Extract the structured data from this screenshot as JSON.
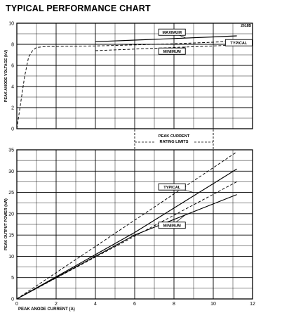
{
  "title": "TYPICAL PERFORMANCE CHART",
  "figure_code": "2618B",
  "colors": {
    "ink": "#000000",
    "paper": "#ffffff"
  },
  "chart_data": [
    {
      "type": "line",
      "title": "",
      "xlabel": "",
      "ylabel": "PEAK ANODE VOLTAGE (kV)",
      "xlim": [
        0,
        12
      ],
      "ylim": [
        0,
        10
      ],
      "x_ticks": [],
      "y_ticks": [
        0,
        2,
        4,
        6,
        8,
        10
      ],
      "grid": true,
      "series": [
        {
          "name": "MAXIMUM",
          "style": "solid",
          "x": [
            4,
            6,
            8,
            10,
            11.2
          ],
          "y": [
            8.25,
            8.4,
            8.55,
            8.7,
            8.8
          ]
        },
        {
          "name": "TYPICAL",
          "style": "dashed",
          "x": [
            0,
            0.2,
            0.4,
            0.6,
            0.8,
            1.0,
            1.5,
            2,
            4,
            6,
            8,
            10,
            11.2
          ],
          "y": [
            0,
            2.5,
            5.0,
            6.8,
            7.4,
            7.7,
            7.8,
            7.8,
            7.85,
            7.95,
            8.05,
            8.2,
            8.3
          ]
        },
        {
          "name": "MINIMUM",
          "style": "dashed",
          "x": [
            4,
            6,
            8,
            10,
            11.2
          ],
          "y": [
            7.4,
            7.55,
            7.7,
            7.85,
            7.95
          ]
        }
      ],
      "annotations": [
        {
          "text": "MAXIMUM",
          "x": 7.9,
          "y": 9.15,
          "boxed": true,
          "pointer_to": [
            8.6,
            8.6
          ]
        },
        {
          "text": "TYPICAL",
          "x": 11.3,
          "y": 8.15,
          "boxed": true,
          "pointer_to": [
            10.6,
            8.25
          ]
        },
        {
          "text": "MINIMUM",
          "x": 7.9,
          "y": 7.35,
          "boxed": true,
          "pointer_to": [
            8.6,
            7.75
          ]
        },
        {
          "text": [
            "PEAK CURRENT",
            "RATING LIMITS"
          ],
          "span": [
            6,
            10
          ]
        }
      ]
    },
    {
      "type": "line",
      "title": "",
      "xlabel": "PEAK ANODE CURRENT (A)",
      "ylabel": "PEAK OUTPUT POWER (kW)",
      "xlim": [
        0,
        12
      ],
      "ylim": [
        0,
        35
      ],
      "x_ticks": [
        0,
        2,
        4,
        6,
        8,
        10,
        12
      ],
      "y_ticks": [
        0,
        5,
        10,
        15,
        20,
        25,
        30,
        35
      ],
      "grid": true,
      "series": [
        {
          "name": "TYPICAL",
          "style": "solid",
          "x": [
            0,
            6,
            11.2
          ],
          "y": [
            0,
            15.6,
            30.5
          ]
        },
        {
          "name": "TYPICAL",
          "style": "dashed",
          "x": [
            0,
            11.2
          ],
          "y": [
            0,
            34.5
          ]
        },
        {
          "name": "MINIMUM",
          "style": "solid",
          "x": [
            0,
            6,
            10,
            11.2
          ],
          "y": [
            0,
            15,
            22.3,
            24.5
          ]
        },
        {
          "name": "MINIMUM",
          "style": "dashed",
          "x": [
            0,
            11.2
          ],
          "y": [
            0,
            27.5
          ]
        }
      ],
      "annotations": [
        {
          "text": "TYPICAL",
          "x": 7.9,
          "y": 26.3,
          "boxed": true,
          "pointer_to": [
            9.0,
            25.0
          ]
        },
        {
          "text": "MINIMUM",
          "x": 7.9,
          "y": 17.3,
          "boxed": true,
          "pointer_to": [
            8.6,
            19.8
          ]
        }
      ]
    }
  ]
}
